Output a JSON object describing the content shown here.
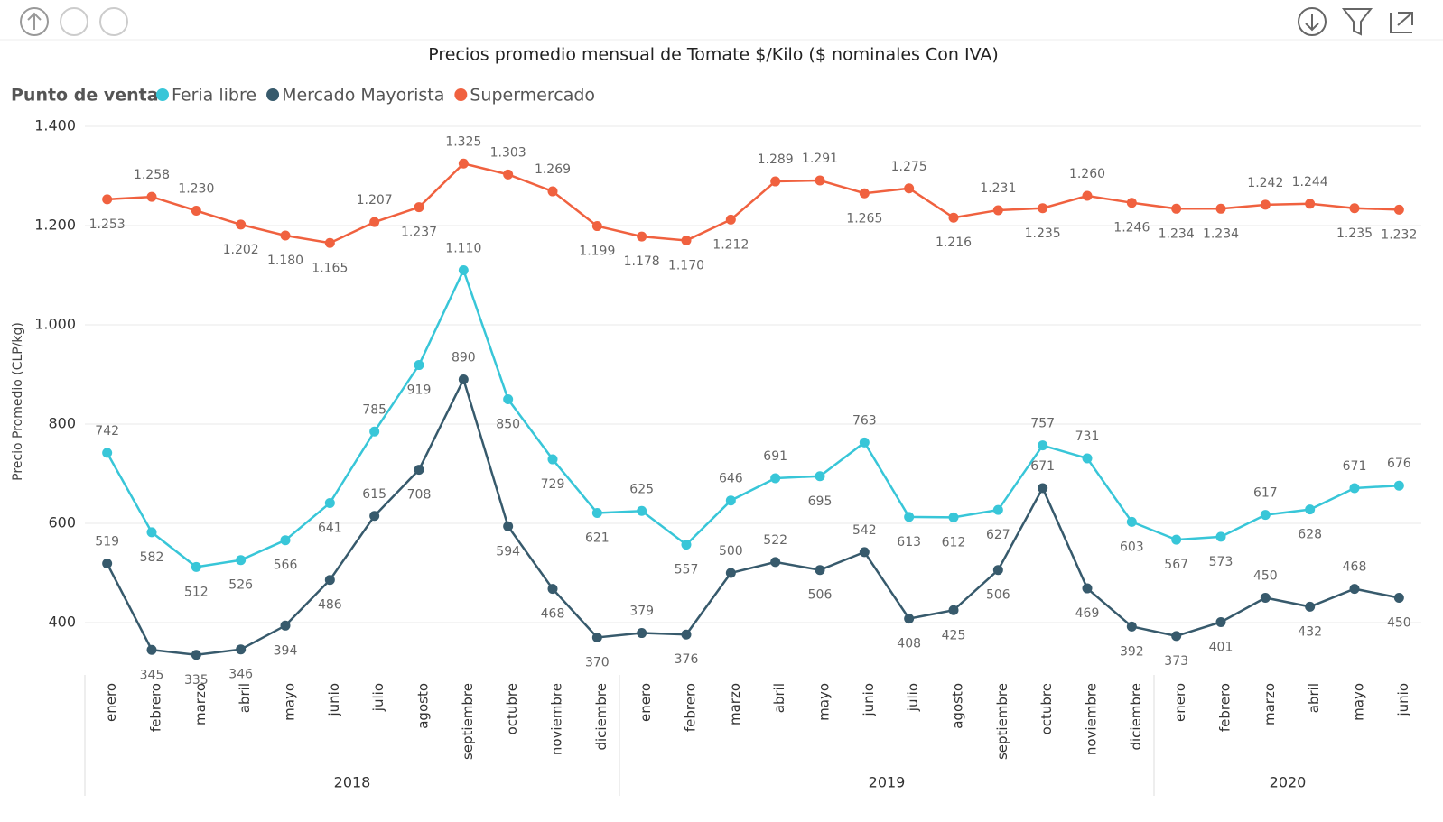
{
  "chart_data": {
    "type": "line",
    "title": "Precios promedio mensual de Tomate $/Kilo ($ nominales Con IVA)",
    "legend_title": "Punto de venta",
    "y_label": "Precio Promedio (CLP/kg)",
    "groups": [
      {
        "name": "2018",
        "categories": [
          "enero",
          "febrero",
          "marzo",
          "abril",
          "mayo",
          "junio",
          "julio",
          "agosto",
          "septiembre",
          "octubre",
          "noviembre",
          "diciembre"
        ]
      },
      {
        "name": "2019",
        "categories": [
          "enero",
          "febrero",
          "marzo",
          "abril",
          "mayo",
          "junio",
          "julio",
          "agosto",
          "septiembre",
          "octubre",
          "noviembre",
          "diciembre"
        ]
      },
      {
        "name": "2020",
        "categories": [
          "enero",
          "febrero",
          "marzo",
          "abril",
          "mayo",
          "junio"
        ]
      }
    ],
    "series": [
      {
        "name": "Feria libre",
        "color": "#38c6d8",
        "values": [
          742,
          582,
          512,
          526,
          566,
          641,
          785,
          919,
          1110,
          850,
          729,
          621,
          625,
          557,
          646,
          691,
          695,
          763,
          613,
          612,
          627,
          757,
          731,
          603,
          567,
          573,
          617,
          628,
          671,
          676
        ],
        "value_labels": [
          "742",
          "582",
          "512",
          "526",
          "566",
          "641",
          "785",
          "919",
          "1.110",
          "850",
          "729",
          "621",
          "625",
          "557",
          "646",
          "691",
          "695",
          "763",
          "613",
          "612",
          "627",
          "757",
          "731",
          "603",
          "567",
          "573",
          "617",
          "628",
          "671",
          "676"
        ]
      },
      {
        "name": "Mercado Mayorista",
        "color": "#375a6c",
        "values": [
          519,
          345,
          335,
          346,
          394,
          486,
          615,
          708,
          890,
          594,
          468,
          370,
          379,
          376,
          500,
          522,
          506,
          542,
          408,
          425,
          506,
          671,
          469,
          392,
          373,
          401,
          450,
          432,
          468,
          450
        ]
      },
      {
        "name": "Supermercado",
        "color": "#f0613f",
        "values": [
          1253,
          1258,
          1230,
          1202,
          1180,
          1165,
          1207,
          1237,
          1325,
          1303,
          1269,
          1199,
          1178,
          1170,
          1212,
          1289,
          1291,
          1265,
          1275,
          1216,
          1231,
          1235,
          1260,
          1246,
          1234,
          1234,
          1242,
          1244,
          1235,
          1232
        ],
        "value_labels": [
          "1.253",
          "1.258",
          "1.230",
          "1.202",
          "1.180",
          "1.165",
          "1.207",
          "1.237",
          "1.325",
          "1.303",
          "1.269",
          "1.199",
          "1.178",
          "1.170",
          "1.212",
          "1.289",
          "1.291",
          "1.265",
          "1.275",
          "1.216",
          "1.231",
          "1.235",
          "1.260",
          "1.246",
          "1.234",
          "1.234",
          "1.242",
          "1.244",
          "1.235",
          "1.232"
        ]
      }
    ],
    "ylim": [
      300,
      1400
    ],
    "yticks": [
      400,
      600,
      800,
      {
        "value": 1000,
        "label": "1.000"
      },
      {
        "value": 1200,
        "label": "1.200"
      },
      {
        "value": 1400,
        "label": "1.400"
      }
    ],
    "grid": true
  }
}
